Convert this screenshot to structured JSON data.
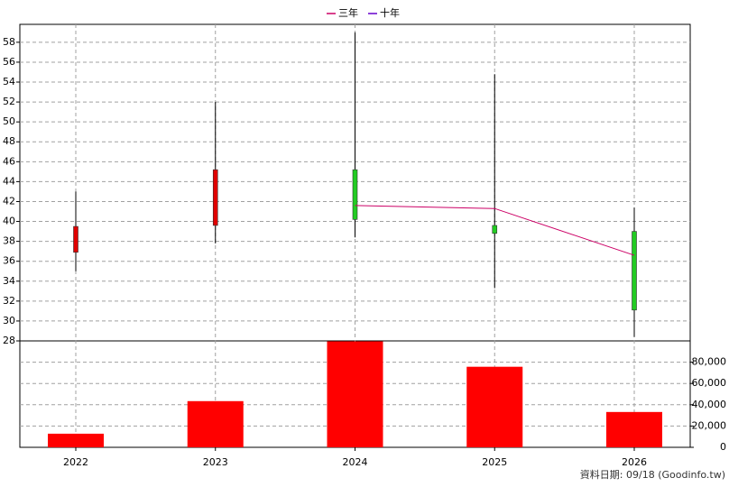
{
  "chart_data": {
    "type": "candlestick",
    "categories": [
      "2022",
      "2023",
      "2024",
      "2025",
      "2026"
    ],
    "open": [
      36.9,
      39.6,
      45.2,
      39.6,
      39
    ],
    "high": [
      43,
      52,
      59,
      54.8,
      41.4
    ],
    "low": [
      35,
      37.8,
      38.4,
      33.3,
      28.4
    ],
    "close": [
      39.5,
      45.2,
      40.2,
      38.8,
      31.1
    ],
    "up_color": "#e00000",
    "down_color": "#22cc22",
    "ylim": [
      28,
      59.8
    ],
    "yticks": [
      28,
      30,
      32,
      34,
      36,
      38,
      40,
      42,
      44,
      46,
      48,
      50,
      52,
      54,
      56,
      58
    ],
    "grid": true,
    "series": [
      {
        "name": "三年",
        "color": "#cc0066",
        "values": [
          null,
          null,
          41.6,
          41.3,
          36.6
        ]
      },
      {
        "name": "十年",
        "color": "#6600cc",
        "values": [
          null,
          null,
          null,
          null,
          null
        ]
      }
    ],
    "volume": {
      "type": "bar",
      "color": "#ff0000",
      "values": [
        12800,
        43400,
        99600,
        75700,
        33200
      ],
      "ylim": [
        0,
        100000
      ],
      "yticks": [
        0,
        {
          "value": 20000,
          "label": "20,000"
        },
        {
          "value": 40000,
          "label": "40,000"
        },
        {
          "value": 60000,
          "label": "60,000"
        },
        {
          "value": 80000,
          "label": "80,000"
        }
      ]
    },
    "footer": "資料日期: 09/18  (Goodinfo.tw)"
  }
}
